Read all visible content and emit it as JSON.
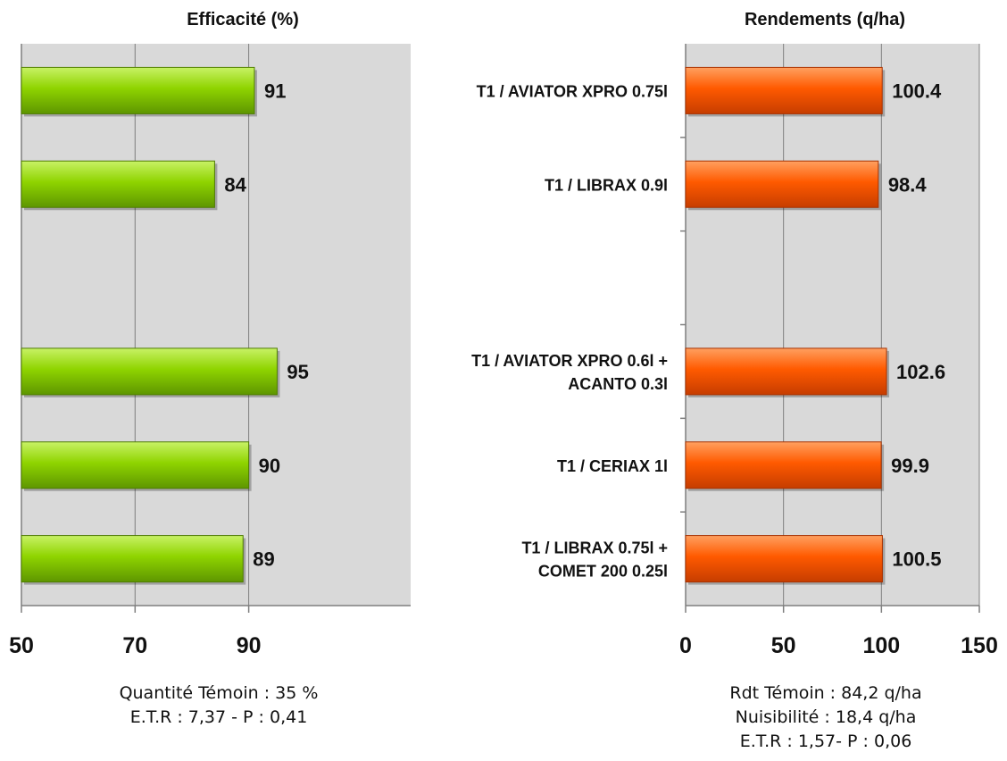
{
  "chart_data": [
    {
      "type": "bar",
      "orientation": "horizontal",
      "title": "Efficacité (%)",
      "xlim": [
        50,
        118.5
      ],
      "ticks": [
        50,
        70,
        90
      ],
      "grid": true,
      "values": [
        91,
        84,
        null,
        95,
        90,
        89
      ],
      "bar_color": "#8fd400",
      "footnote": [
        "Quantité Témoin : 35 %",
        "E.T.R : 7,37 -  P : 0,41"
      ]
    },
    {
      "type": "bar",
      "orientation": "horizontal",
      "title": "Rendements (q/ha)",
      "xlim": [
        0,
        150
      ],
      "ticks": [
        0,
        50,
        100,
        150
      ],
      "grid": true,
      "categories": [
        [
          "T1 / AVIATOR XPRO 0.75l"
        ],
        [
          "T1 /  LIBRAX 0.9l"
        ],
        [],
        [
          "T1 / AVIATOR XPRO 0.6l +",
          "ACANTO 0.3l"
        ],
        [
          "T1 / CERIAX 1l"
        ],
        [
          "T1 / LIBRAX 0.75l +",
          "COMET 200 0.25l"
        ]
      ],
      "values": [
        100.4,
        98.4,
        null,
        102.6,
        99.9,
        100.5
      ],
      "bar_color": "#ff5a00",
      "footnote": [
        "Rdt Témoin : 84,2 q/ha",
        "Nuisibilité : 18,4 q/ha",
        "E.T.R : 1,57-  P : 0,06"
      ]
    }
  ]
}
